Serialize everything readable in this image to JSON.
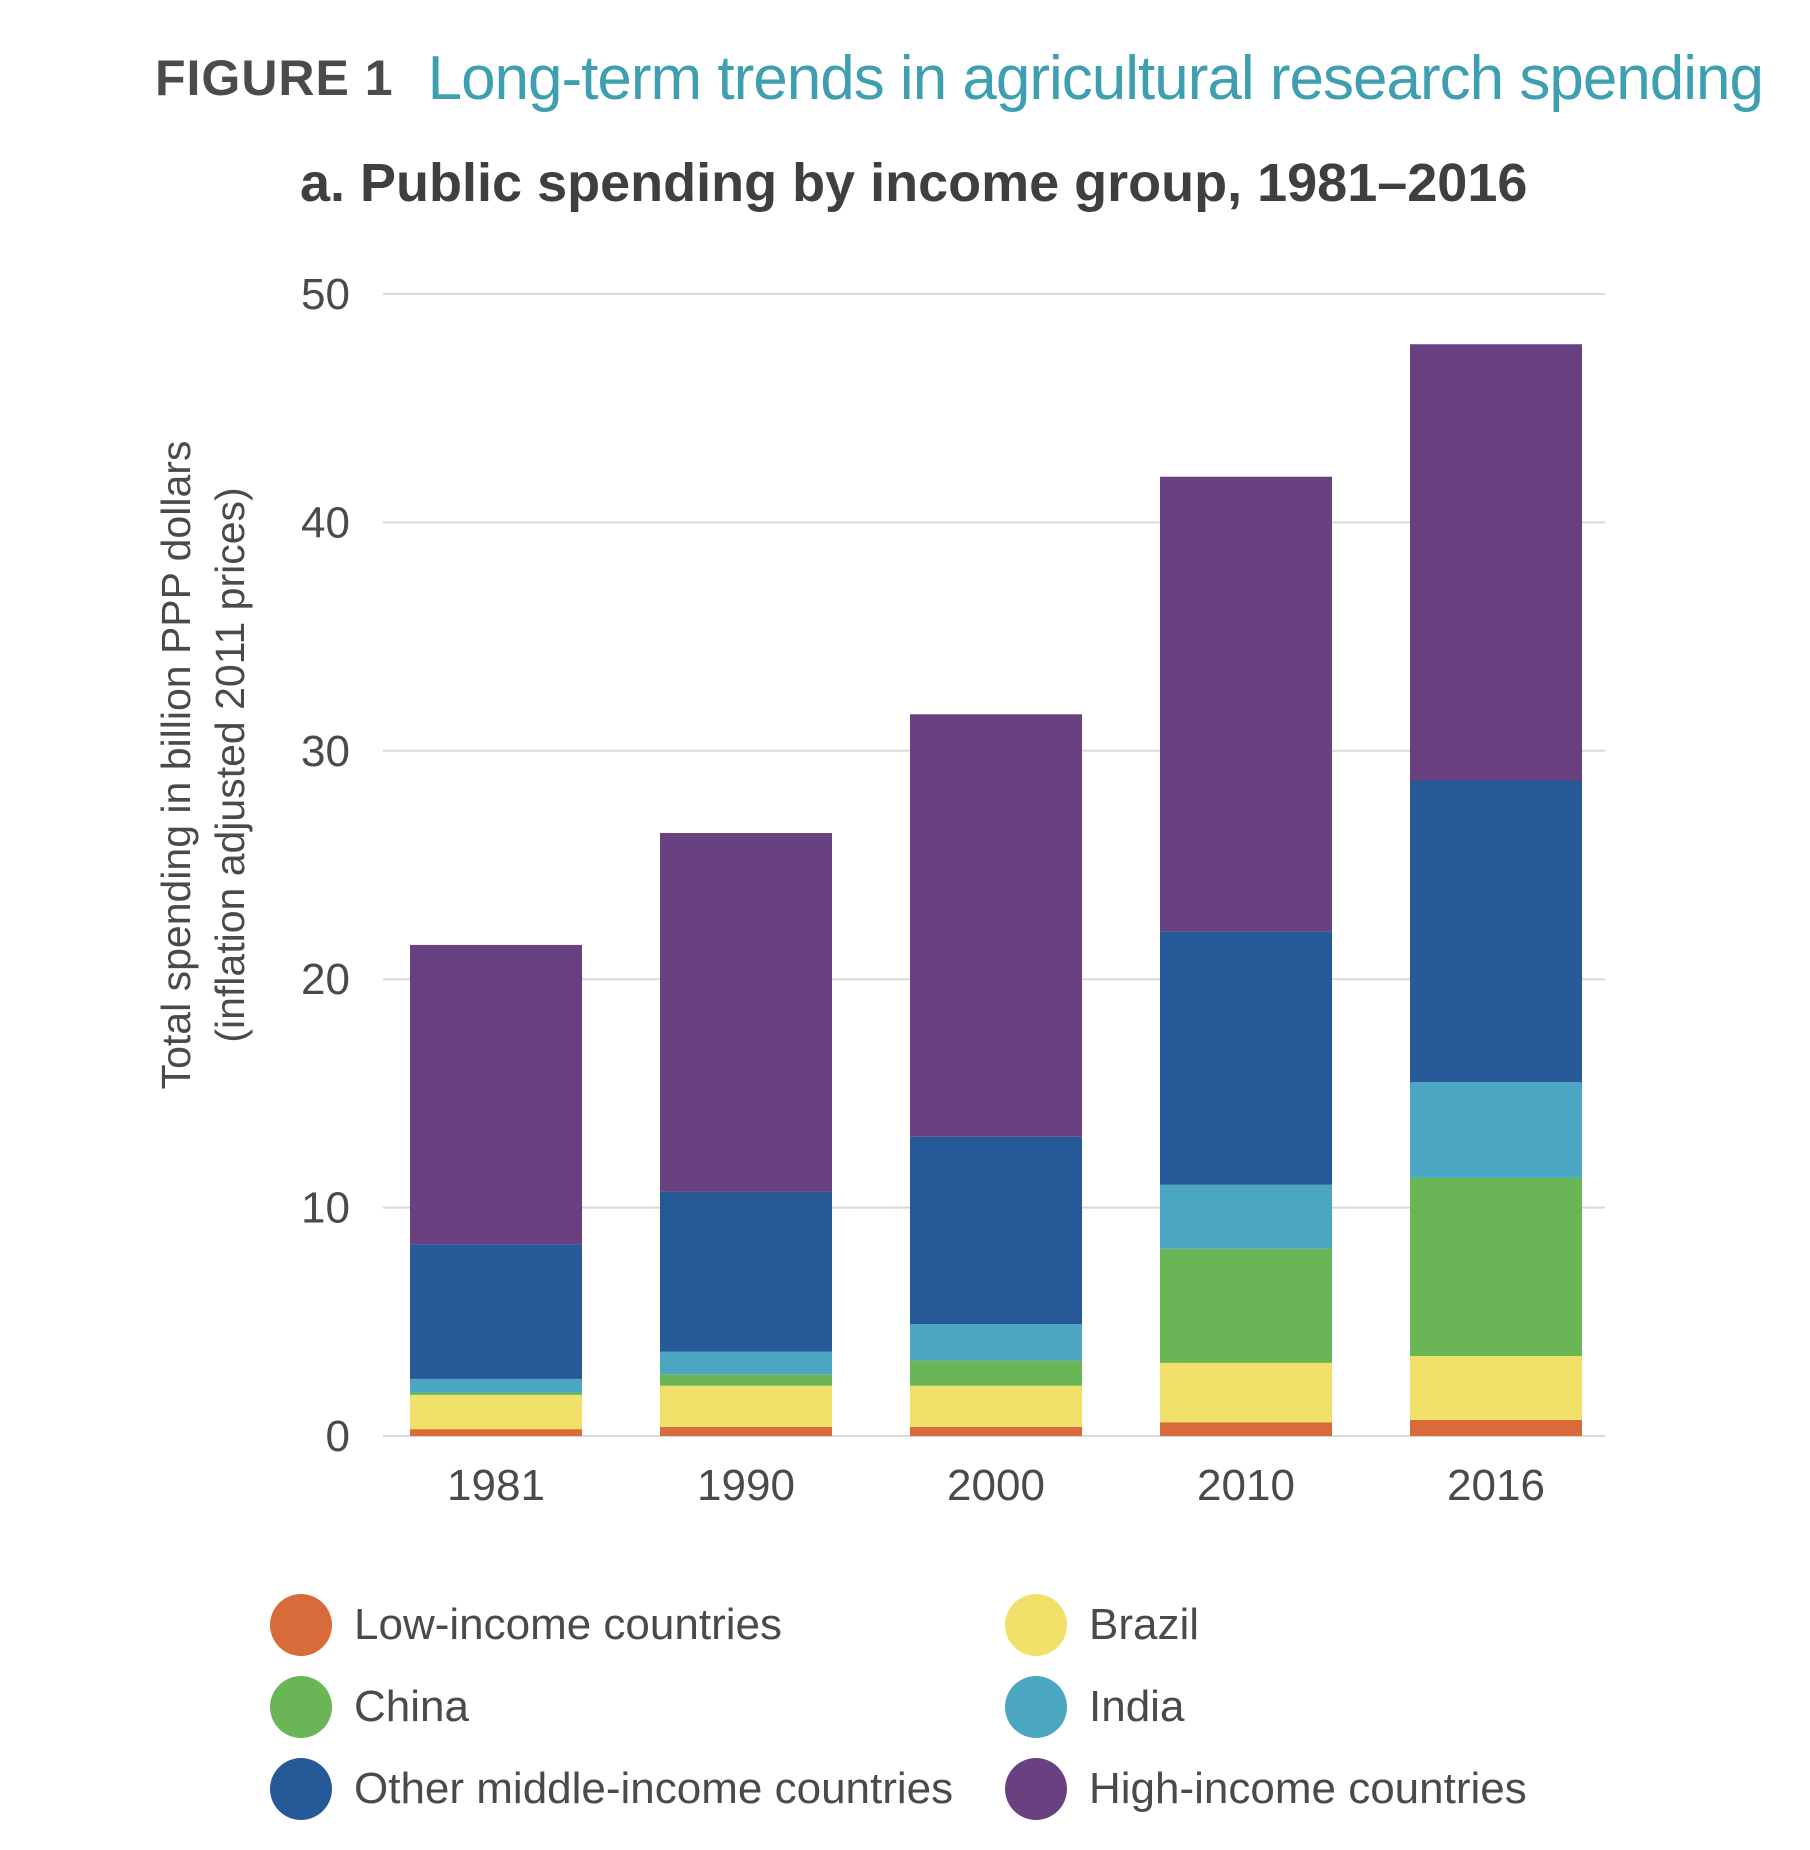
{
  "figure": {
    "label": "FIGURE 1",
    "title": "Long-term trends in agricultural research spending",
    "title_color": "#3e9fb0"
  },
  "chart_data": {
    "type": "bar",
    "stacked": true,
    "title": "a. Public spending by income group, 1981–2016",
    "xlabel": "",
    "ylabel_lines": [
      "Total spending in billion PPP dollars",
      "(inflation adjusted 2011 prices)"
    ],
    "categories": [
      "1981",
      "1990",
      "2000",
      "2010",
      "2016"
    ],
    "ylim": [
      0,
      50
    ],
    "yticks": [
      0,
      10,
      20,
      30,
      40,
      50
    ],
    "grid": true,
    "legend_position": "bottom",
    "series": [
      {
        "name": "Low-income countries",
        "color": "#d96a3a",
        "values": [
          0.3,
          0.4,
          0.4,
          0.6,
          0.7
        ]
      },
      {
        "name": "Brazil",
        "color": "#f1e06a",
        "values": [
          1.5,
          1.8,
          1.8,
          2.6,
          2.8
        ]
      },
      {
        "name": "China",
        "color": "#6ab556",
        "values": [
          0.1,
          0.5,
          1.1,
          5.0,
          7.8
        ]
      },
      {
        "name": "India",
        "color": "#4ba6c2",
        "values": [
          0.6,
          1.0,
          1.6,
          2.8,
          4.2
        ]
      },
      {
        "name": "Other middle-income countries",
        "color": "#265998",
        "values": [
          5.9,
          7.0,
          8.2,
          11.1,
          13.2
        ]
      },
      {
        "name": "High-income countries",
        "color": "#6a4180",
        "values": [
          13.1,
          15.7,
          18.5,
          19.9,
          19.1
        ]
      }
    ]
  },
  "legend": {
    "items": [
      {
        "label": "Low-income countries",
        "color": "#d96a3a"
      },
      {
        "label": "Brazil",
        "color": "#f1e06a"
      },
      {
        "label": "China",
        "color": "#6ab556"
      },
      {
        "label": "India",
        "color": "#4ba6c2"
      },
      {
        "label": "Other middle-income countries",
        "color": "#265998"
      },
      {
        "label": "High-income countries",
        "color": "#6a4180"
      }
    ]
  }
}
